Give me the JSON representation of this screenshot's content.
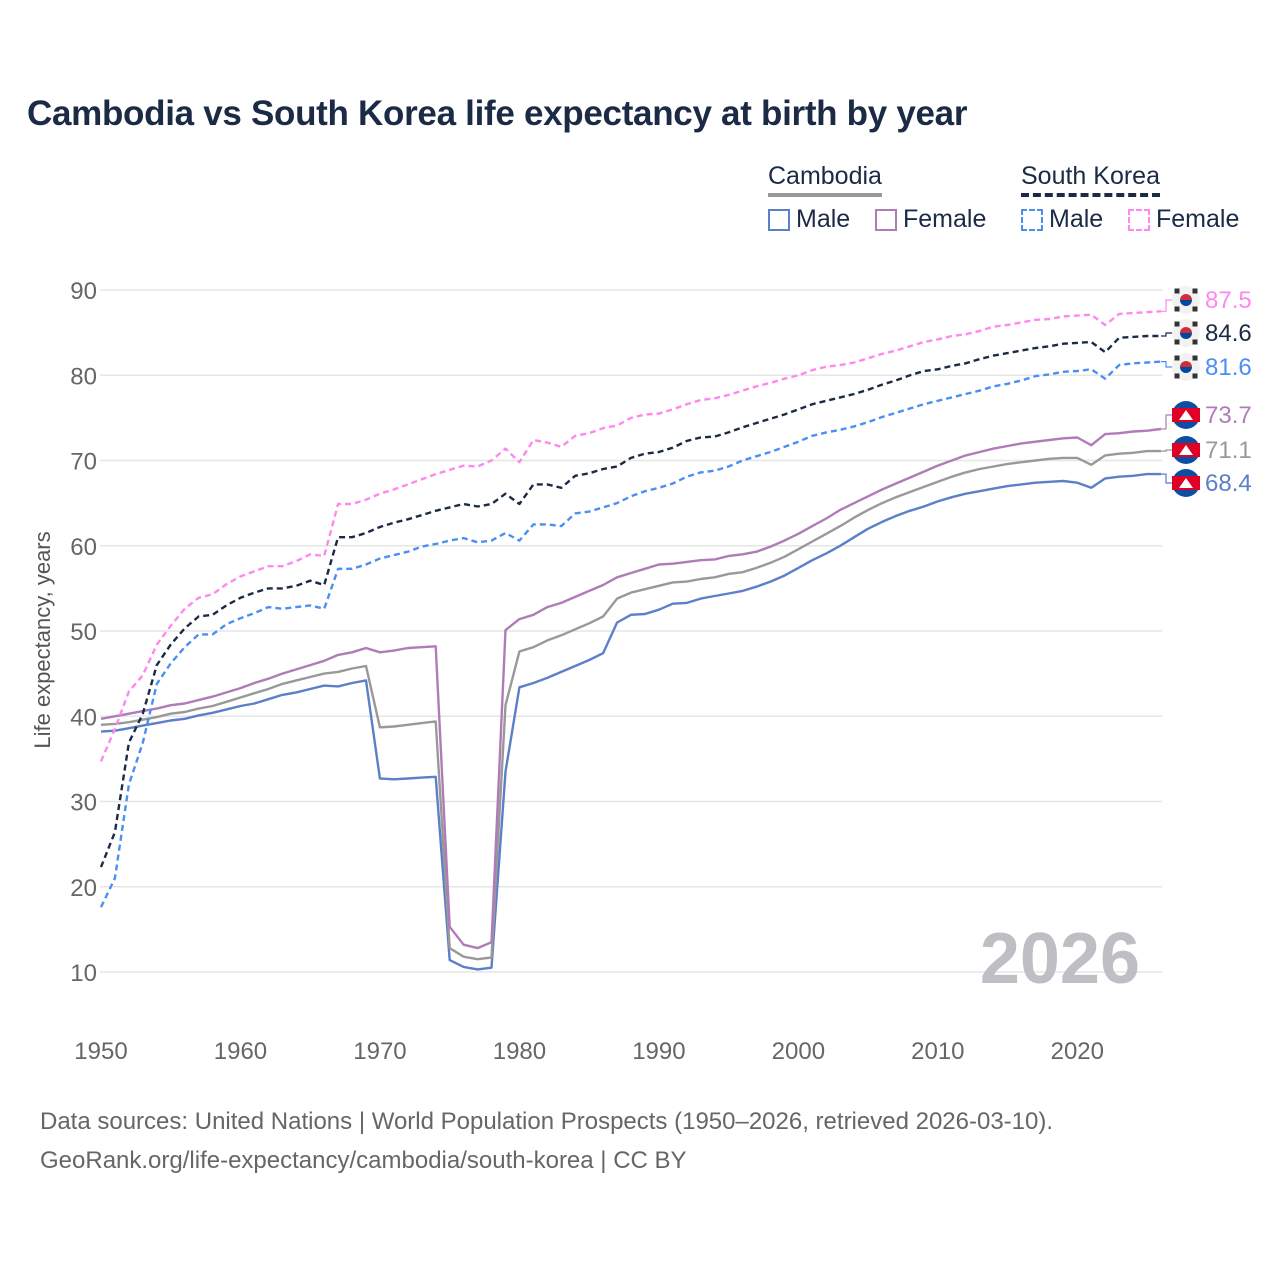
{
  "title": "Cambodia vs South Korea life expectancy at birth by year",
  "legend": {
    "groups": [
      {
        "name": "Cambodia",
        "items": [
          "Male",
          "Female"
        ]
      },
      {
        "name": "South Korea",
        "items": [
          "Male",
          "Female"
        ]
      }
    ]
  },
  "watermark": "2026",
  "footer": {
    "line1": "Data sources: United Nations | World Population Prospects (1950–2026, retrieved 2026-03-10).",
    "line2": "GeoRank.org/life-expectancy/cambodia/south-korea | CC BY"
  },
  "chart_data": {
    "type": "line",
    "title": "Cambodia vs South Korea life expectancy at birth by year",
    "xlabel": "",
    "ylabel": "Life expectancy, years",
    "xlim": [
      1950,
      2026
    ],
    "ylim": [
      10,
      90
    ],
    "xticks": [
      "1950",
      "1960",
      "1970",
      "1980",
      "1990",
      "2000",
      "2010",
      "2020"
    ],
    "yticks": [
      "10",
      "20",
      "30",
      "40",
      "50",
      "60",
      "70",
      "80",
      "90"
    ],
    "grid": true,
    "legend_position": "top-right",
    "x_start": 1950,
    "series": [
      {
        "name": "Cambodia Male",
        "country": "Cambodia",
        "sex": "Male",
        "color": "#5b7fc8",
        "dash": false,
        "end_label": "68.4",
        "values": [
          38.2,
          38.3,
          38.6,
          38.9,
          39.2,
          39.5,
          39.7,
          40.1,
          40.4,
          40.8,
          41.2,
          41.5,
          42.0,
          42.5,
          42.8,
          43.2,
          43.6,
          43.5,
          43.9,
          44.2,
          32.7,
          32.6,
          32.7,
          32.8,
          32.9,
          11.4,
          10.6,
          10.3,
          10.5,
          33.5,
          43.4,
          43.9,
          44.5,
          45.2,
          45.9,
          46.6,
          47.4,
          51.0,
          51.9,
          52.0,
          52.5,
          53.2,
          53.3,
          53.8,
          54.1,
          54.4,
          54.7,
          55.2,
          55.8,
          56.5,
          57.4,
          58.3,
          59.1,
          60.0,
          61.0,
          62.0,
          62.8,
          63.5,
          64.1,
          64.6,
          65.2,
          65.7,
          66.1,
          66.4,
          66.7,
          67.0,
          67.2,
          67.4,
          67.5,
          67.6,
          67.4,
          66.8,
          67.9,
          68.1,
          68.2,
          68.4,
          68.4
        ]
      },
      {
        "name": "Cambodia",
        "country": "Cambodia",
        "sex": "Both",
        "color": "#999999",
        "dash": false,
        "end_label": "71.1",
        "values": [
          39.0,
          39.1,
          39.3,
          39.6,
          39.9,
          40.3,
          40.5,
          40.9,
          41.2,
          41.7,
          42.2,
          42.7,
          43.2,
          43.8,
          44.2,
          44.6,
          45.0,
          45.2,
          45.6,
          45.9,
          38.7,
          38.8,
          39.0,
          39.2,
          39.4,
          12.8,
          11.8,
          11.5,
          11.7,
          41.3,
          47.6,
          48.1,
          48.9,
          49.5,
          50.2,
          50.9,
          51.7,
          53.8,
          54.5,
          54.9,
          55.3,
          55.7,
          55.8,
          56.1,
          56.3,
          56.7,
          56.9,
          57.4,
          58.0,
          58.7,
          59.6,
          60.5,
          61.4,
          62.3,
          63.3,
          64.2,
          65.0,
          65.7,
          66.3,
          66.9,
          67.5,
          68.1,
          68.6,
          69.0,
          69.3,
          69.6,
          69.8,
          70.0,
          70.2,
          70.3,
          70.3,
          69.5,
          70.6,
          70.8,
          70.9,
          71.1,
          71.1
        ]
      },
      {
        "name": "Cambodia Female",
        "country": "Cambodia",
        "sex": "Female",
        "color": "#b07cb8",
        "dash": false,
        "end_label": "73.7",
        "values": [
          39.7,
          40.0,
          40.3,
          40.6,
          40.9,
          41.3,
          41.5,
          41.9,
          42.3,
          42.8,
          43.3,
          43.9,
          44.4,
          45.0,
          45.5,
          46.0,
          46.5,
          47.2,
          47.5,
          48.0,
          47.5,
          47.7,
          48.0,
          48.1,
          48.2,
          15.3,
          13.2,
          12.8,
          13.5,
          50.1,
          51.4,
          51.9,
          52.8,
          53.3,
          54.0,
          54.7,
          55.4,
          56.3,
          56.8,
          57.3,
          57.8,
          57.9,
          58.1,
          58.3,
          58.4,
          58.8,
          59.0,
          59.3,
          59.9,
          60.6,
          61.4,
          62.3,
          63.2,
          64.2,
          65.0,
          65.8,
          66.6,
          67.3,
          68.0,
          68.7,
          69.4,
          70.0,
          70.6,
          71.0,
          71.4,
          71.7,
          72.0,
          72.2,
          72.4,
          72.6,
          72.7,
          71.8,
          73.1,
          73.2,
          73.4,
          73.5,
          73.7
        ]
      },
      {
        "name": "South Korea Male",
        "country": "South Korea",
        "sex": "Male",
        "color": "#4a8ff2",
        "dash": true,
        "end_label": "81.6",
        "values": [
          17.6,
          21.0,
          32.0,
          36.9,
          43.8,
          46.2,
          48.1,
          49.6,
          49.6,
          50.8,
          51.5,
          52.1,
          52.8,
          52.6,
          52.8,
          53.0,
          52.6,
          57.3,
          57.3,
          57.8,
          58.5,
          58.9,
          59.3,
          59.9,
          60.2,
          60.6,
          60.9,
          60.4,
          60.6,
          61.5,
          60.6,
          62.5,
          62.5,
          62.3,
          63.8,
          64.0,
          64.5,
          65.0,
          65.8,
          66.4,
          66.8,
          67.3,
          68.1,
          68.6,
          68.8,
          69.3,
          70.0,
          70.5,
          71.0,
          71.6,
          72.2,
          72.9,
          73.3,
          73.6,
          74.0,
          74.5,
          75.1,
          75.6,
          76.1,
          76.6,
          77.0,
          77.4,
          77.8,
          78.2,
          78.7,
          79.0,
          79.4,
          79.9,
          80.1,
          80.4,
          80.5,
          80.7,
          79.6,
          81.2,
          81.4,
          81.5,
          81.6
        ]
      },
      {
        "name": "South Korea",
        "country": "South Korea",
        "sex": "Both",
        "color": "#1b2a45",
        "dash": true,
        "end_label": "84.6",
        "values": [
          22.3,
          26.4,
          36.9,
          40.3,
          46.0,
          48.4,
          50.3,
          51.7,
          51.9,
          53.0,
          53.9,
          54.5,
          55.0,
          55.0,
          55.3,
          55.9,
          55.4,
          61.0,
          61.0,
          61.5,
          62.2,
          62.7,
          63.1,
          63.6,
          64.1,
          64.5,
          64.9,
          64.6,
          64.9,
          66.1,
          64.9,
          67.2,
          67.2,
          66.8,
          68.2,
          68.5,
          69.0,
          69.3,
          70.3,
          70.8,
          71.0,
          71.5,
          72.3,
          72.7,
          72.8,
          73.3,
          73.9,
          74.4,
          74.9,
          75.4,
          76.0,
          76.6,
          77.0,
          77.4,
          77.8,
          78.3,
          78.9,
          79.4,
          80.0,
          80.5,
          80.7,
          81.1,
          81.4,
          81.9,
          82.3,
          82.6,
          82.9,
          83.2,
          83.4,
          83.7,
          83.8,
          83.9,
          82.7,
          84.4,
          84.5,
          84.6,
          84.6
        ]
      },
      {
        "name": "South Korea Female",
        "country": "South Korea",
        "sex": "Female",
        "color": "#ff88ee",
        "dash": true,
        "end_label": "87.5",
        "values": [
          34.7,
          38.5,
          42.9,
          44.8,
          48.4,
          50.6,
          52.6,
          53.9,
          54.3,
          55.5,
          56.4,
          57.0,
          57.6,
          57.6,
          58.2,
          59.0,
          58.8,
          64.9,
          64.9,
          65.4,
          66.1,
          66.6,
          67.2,
          67.8,
          68.4,
          68.9,
          69.4,
          69.3,
          70.0,
          71.4,
          69.8,
          72.4,
          72.1,
          71.6,
          72.9,
          73.2,
          73.8,
          74.1,
          75.0,
          75.4,
          75.5,
          76.0,
          76.6,
          77.1,
          77.3,
          77.7,
          78.2,
          78.7,
          79.1,
          79.6,
          80.0,
          80.6,
          81.0,
          81.2,
          81.5,
          82.0,
          82.5,
          82.9,
          83.4,
          83.9,
          84.2,
          84.6,
          84.8,
          85.2,
          85.7,
          85.9,
          86.2,
          86.5,
          86.6,
          86.9,
          87.0,
          87.1,
          85.9,
          87.2,
          87.3,
          87.4,
          87.5
        ]
      }
    ]
  }
}
